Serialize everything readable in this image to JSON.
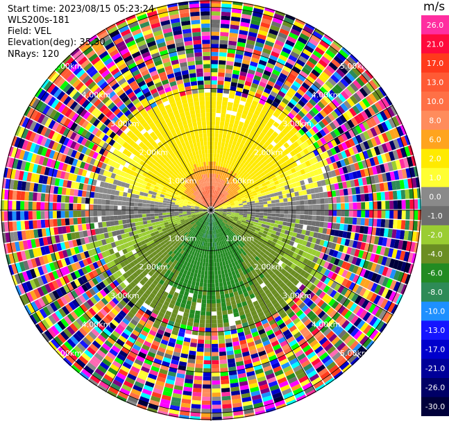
{
  "header": {
    "start_time": "Start time: 2023/08/15 05:23:24",
    "instrument": "WLS200s-181",
    "field": "Field: VEL",
    "elevation": "Elevation(deg): 35.30",
    "nrays": "NRays: 120"
  },
  "colorbar": {
    "unit": "m/s",
    "entries": [
      {
        "label": "26.0",
        "color": "#ff2ea0"
      },
      {
        "label": "21.0",
        "color": "#ff0a3c"
      },
      {
        "label": "17.0",
        "color": "#ff3a1c"
      },
      {
        "label": "13.0",
        "color": "#ff5a34"
      },
      {
        "label": "10.0",
        "color": "#ff7046"
      },
      {
        "label": "8.0",
        "color": "#ff8c5c"
      },
      {
        "label": "6.0",
        "color": "#ffa41e"
      },
      {
        "label": "2.0",
        "color": "#ffea00"
      },
      {
        "label": "1.0",
        "color": "#ffff33"
      },
      {
        "label": "0.0",
        "color": "#8a8a8a"
      },
      {
        "label": "-1.0",
        "color": "#6e6e6e"
      },
      {
        "label": "-2.0",
        "color": "#9acd32"
      },
      {
        "label": "-4.0",
        "color": "#6b8e23"
      },
      {
        "label": "-6.0",
        "color": "#228b22"
      },
      {
        "label": "-8.0",
        "color": "#2e8b57"
      },
      {
        "label": "-10.0",
        "color": "#1e90ff"
      },
      {
        "label": "-13.0",
        "color": "#1515ff"
      },
      {
        "label": "-17.0",
        "color": "#0000cc"
      },
      {
        "label": "-21.0",
        "color": "#000099"
      },
      {
        "label": "-26.0",
        "color": "#000066"
      },
      {
        "label": "-30.0",
        "color": "#00003a"
      }
    ]
  },
  "chart_data": {
    "type": "heatmap",
    "subtype": "radar-ppi",
    "field": "VEL",
    "units": "m/s",
    "nrays": 120,
    "range_rings_km": [
      1.0,
      2.0,
      3.0,
      4.0,
      5.0
    ],
    "ring_labels": [
      "1.00km",
      "2.00km",
      "3.00km",
      "4.00km",
      "5.00km"
    ],
    "spokes_deg": [
      0,
      30,
      60,
      90,
      120,
      150,
      180,
      210,
      240,
      270,
      300,
      330
    ],
    "max_range_km": 5.8,
    "valid_data_range_km": [
      0.0,
      2.9
    ],
    "velocity_pattern": [
      {
        "region": "north",
        "azimuth_deg": [
          300,
          60
        ],
        "velocity_ms": [
          2.0,
          10.0
        ]
      },
      {
        "region": "east-west",
        "azimuth_deg": [
          60,
          120
        ],
        "velocity_ms": [
          -1.0,
          1.0
        ]
      },
      {
        "region": "south",
        "azimuth_deg": [
          120,
          240
        ],
        "velocity_ms": [
          -8.0,
          -2.0
        ]
      },
      {
        "region": "west",
        "azimuth_deg": [
          240,
          300
        ],
        "velocity_ms": [
          -1.0,
          1.0
        ]
      }
    ],
    "noise_beyond_km": 2.9
  }
}
